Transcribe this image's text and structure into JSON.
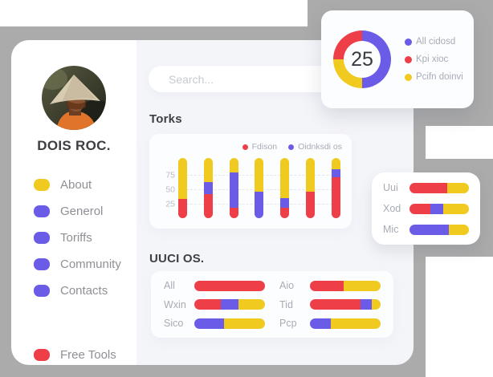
{
  "colors": {
    "red": "#ee3e48",
    "yellow": "#f1ca1f",
    "purple": "#6b5ce8",
    "gray_backdrop": "#ababab",
    "panel": "#f4f5f9"
  },
  "sidebar": {
    "profile_name": "DOIS ROC.",
    "menu_items": [
      {
        "label": "About",
        "icon": "blob-icon",
        "color": "yellow"
      },
      {
        "label": "Generol",
        "icon": "blob-icon",
        "color": "purple"
      },
      {
        "label": "Toriffs",
        "icon": "blob-icon",
        "color": "purple"
      },
      {
        "label": "Community",
        "icon": "blob-icon",
        "color": "purple"
      },
      {
        "label": "Contacts",
        "icon": "blob-icon",
        "color": "purple"
      }
    ],
    "footer_item": {
      "label": "Free Tools",
      "icon": "blob-icon",
      "color": "red"
    }
  },
  "search": {
    "placeholder": "Search..."
  },
  "donut_card": {
    "center_value": "25",
    "legend": [
      {
        "label": "All cidosd",
        "color": "purple"
      },
      {
        "label": "Kpi xioc",
        "color": "red"
      },
      {
        "label": "Pcifn doinvi",
        "color": "yellow"
      }
    ],
    "chart_data": {
      "type": "pie",
      "donut": true,
      "center_label": "25",
      "slices": [
        {
          "name": "All cidosd",
          "color": "purple",
          "value": 50
        },
        {
          "name": "Pcifn doinvi",
          "color": "yellow",
          "value": 25
        },
        {
          "name": "Kpi xioc",
          "color": "red",
          "value": 25
        }
      ]
    }
  },
  "torks": {
    "title": "Torks",
    "chart_data": {
      "type": "bar",
      "stacked": true,
      "legend": [
        {
          "name": "Fdison",
          "color": "red"
        },
        {
          "name": "Oidnksdi os",
          "color": "purple"
        }
      ],
      "y_ticks": [
        25,
        50,
        75
      ],
      "y_max": 104,
      "grid": "dashed",
      "bars": [
        {
          "segments": [
            [
              "red",
              32
            ],
            [
              "yellow",
              68
            ]
          ]
        },
        {
          "segments": [
            [
              "red",
              40
            ],
            [
              "purple",
              20
            ],
            [
              "yellow",
              40
            ]
          ]
        },
        {
          "segments": [
            [
              "red",
              17
            ],
            [
              "purple",
              59
            ],
            [
              "yellow",
              24
            ]
          ]
        },
        {
          "segments": [
            [
              "purple",
              44
            ],
            [
              "yellow",
              56
            ]
          ]
        },
        {
          "segments": [
            [
              "red",
              17
            ],
            [
              "purple",
              16
            ],
            [
              "yellow",
              67
            ]
          ]
        },
        {
          "segments": [
            [
              "red",
              44
            ],
            [
              "yellow",
              56
            ]
          ]
        },
        {
          "segments": [
            [
              "red",
              68
            ],
            [
              "purple",
              14
            ],
            [
              "yellow",
              18
            ]
          ]
        }
      ]
    }
  },
  "uuci": {
    "title": "UUCI OS.",
    "chart_data": {
      "type": "bar",
      "stacked": true,
      "orientation": "horizontal",
      "columns": [
        [
          {
            "label": "All",
            "segments": [
              [
                "red",
                100
              ]
            ]
          },
          {
            "label": "Wxin",
            "segments": [
              [
                "red",
                37
              ],
              [
                "purple",
                26
              ],
              [
                "yellow",
                37
              ]
            ]
          },
          {
            "label": "Sico",
            "segments": [
              [
                "purple",
                42
              ],
              [
                "yellow",
                58
              ]
            ]
          }
        ],
        [
          {
            "label": "Aio",
            "segments": [
              [
                "red",
                48
              ],
              [
                "yellow",
                52
              ]
            ]
          },
          {
            "label": "Tid",
            "segments": [
              [
                "red",
                72
              ],
              [
                "purple",
                15
              ],
              [
                "yellow",
                13
              ]
            ]
          },
          {
            "label": "Pcp",
            "segments": [
              [
                "purple",
                29
              ],
              [
                "yellow",
                71
              ]
            ]
          }
        ]
      ]
    }
  },
  "mini_card": {
    "chart_data": {
      "type": "bar",
      "stacked": true,
      "orientation": "horizontal",
      "rows": [
        {
          "label": "Uui",
          "segments": [
            [
              "red",
              64
            ],
            [
              "yellow",
              36
            ]
          ]
        },
        {
          "label": "Xod",
          "segments": [
            [
              "red",
              35
            ],
            [
              "purple",
              22
            ],
            [
              "yellow",
              43
            ]
          ]
        },
        {
          "label": "Mic",
          "segments": [
            [
              "purple",
              66
            ],
            [
              "yellow",
              34
            ]
          ]
        }
      ]
    }
  }
}
